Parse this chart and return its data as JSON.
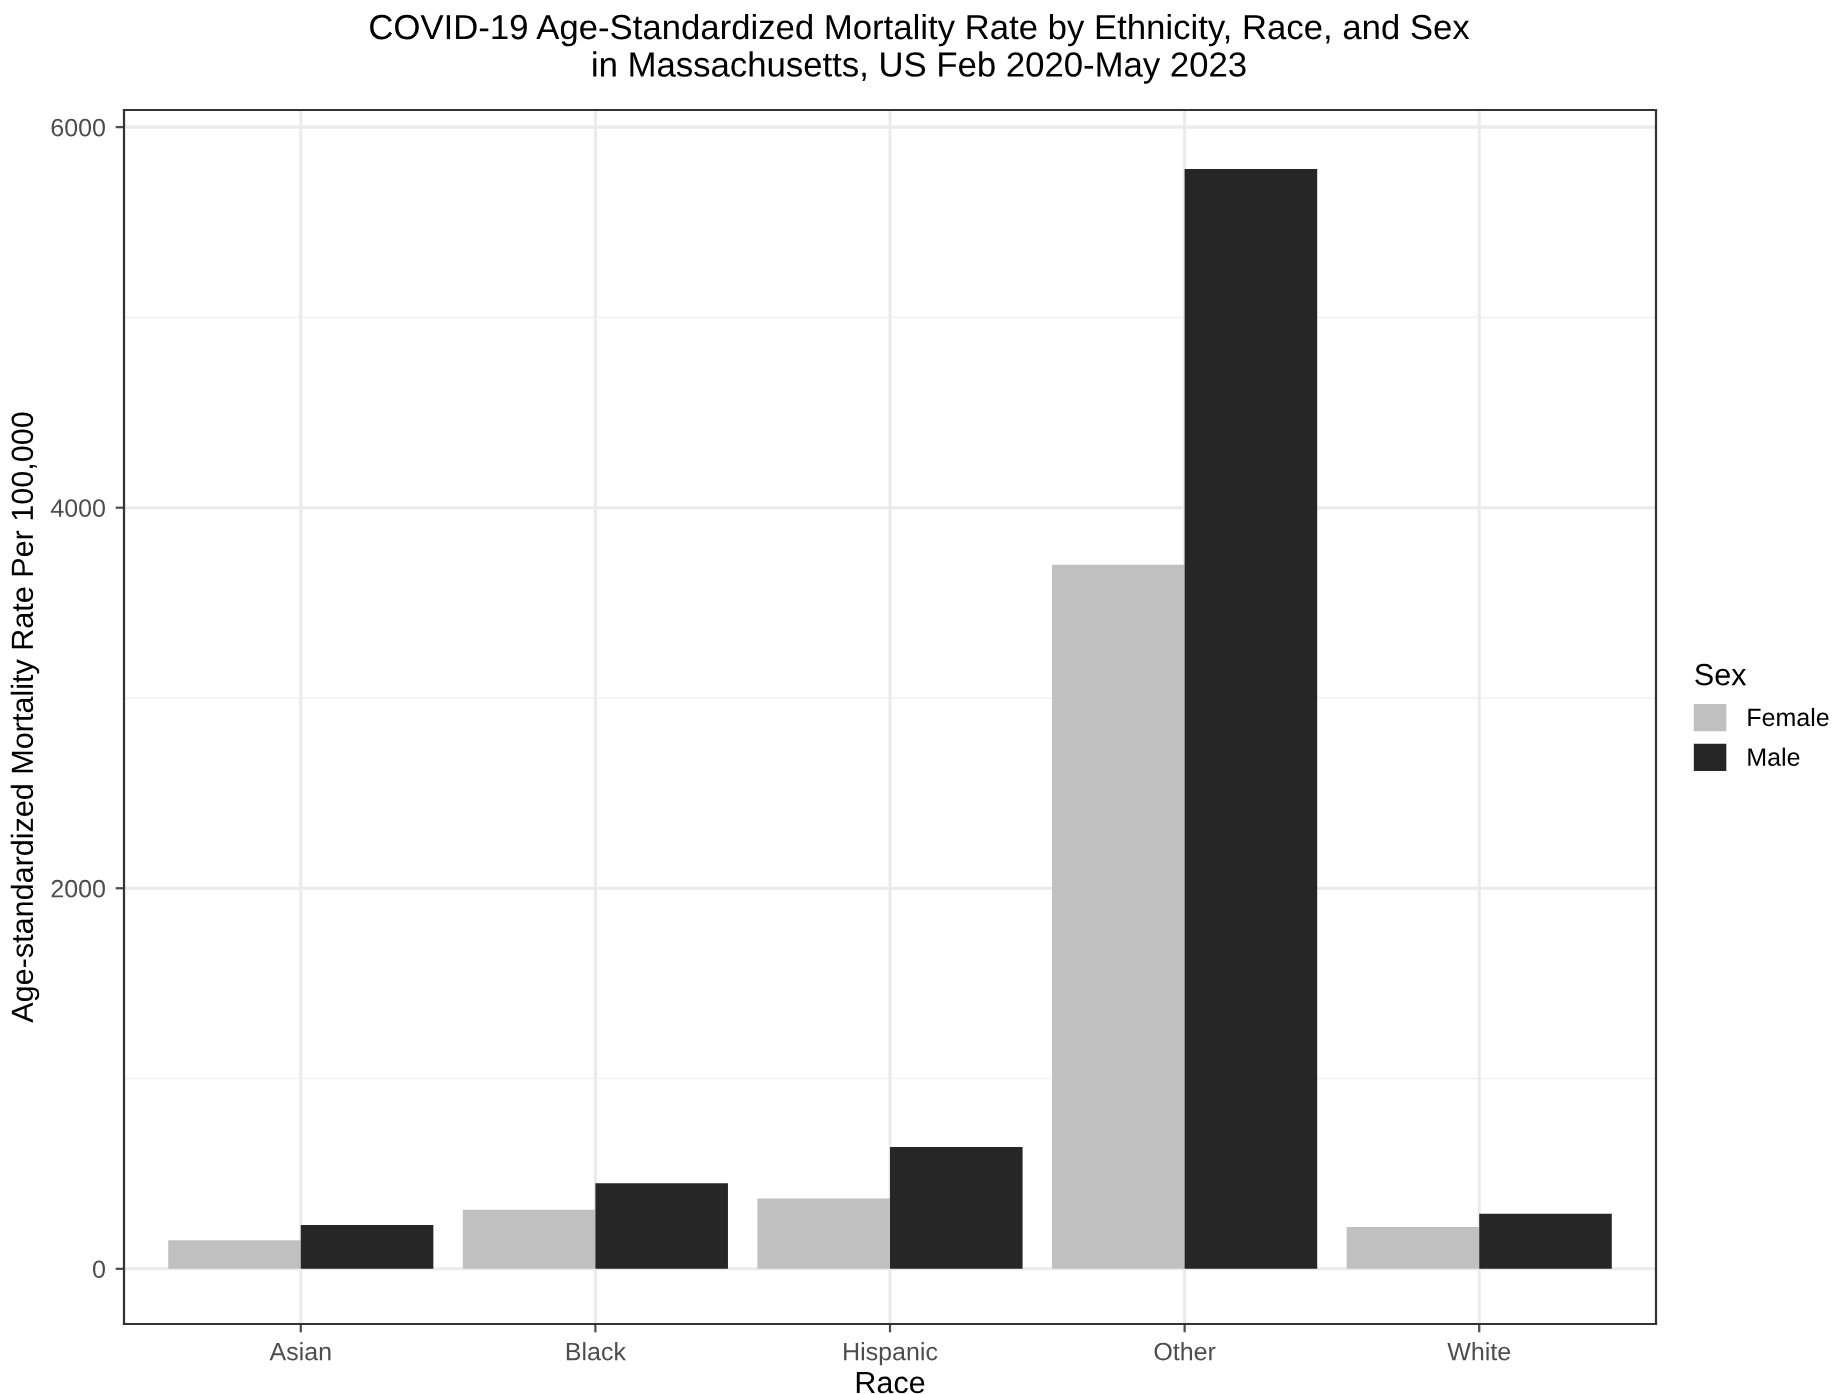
{
  "chart_data": {
    "type": "bar",
    "title": "COVID-19 Age-Standardized Mortality Rate by Ethnicity, Race, and Sex\nin Massachusetts, US Feb 2020-May 2023",
    "xlabel": "Race",
    "ylabel": "Age-standardized Mortality Rate Per 100,000",
    "legend_title": "Sex",
    "categories": [
      "Asian",
      "Black",
      "Hispanic",
      "Other",
      "White"
    ],
    "series": [
      {
        "name": "Female",
        "color": "#c0c0c0",
        "values": [
          150,
          310,
          370,
          3700,
          220
        ]
      },
      {
        "name": "Male",
        "color": "#262626",
        "values": [
          230,
          450,
          640,
          5780,
          290
        ]
      }
    ],
    "ylim": [
      -290,
      6090
    ],
    "yticks": [
      0,
      2000,
      4000,
      6000
    ],
    "grid": true,
    "legend": "right"
  }
}
